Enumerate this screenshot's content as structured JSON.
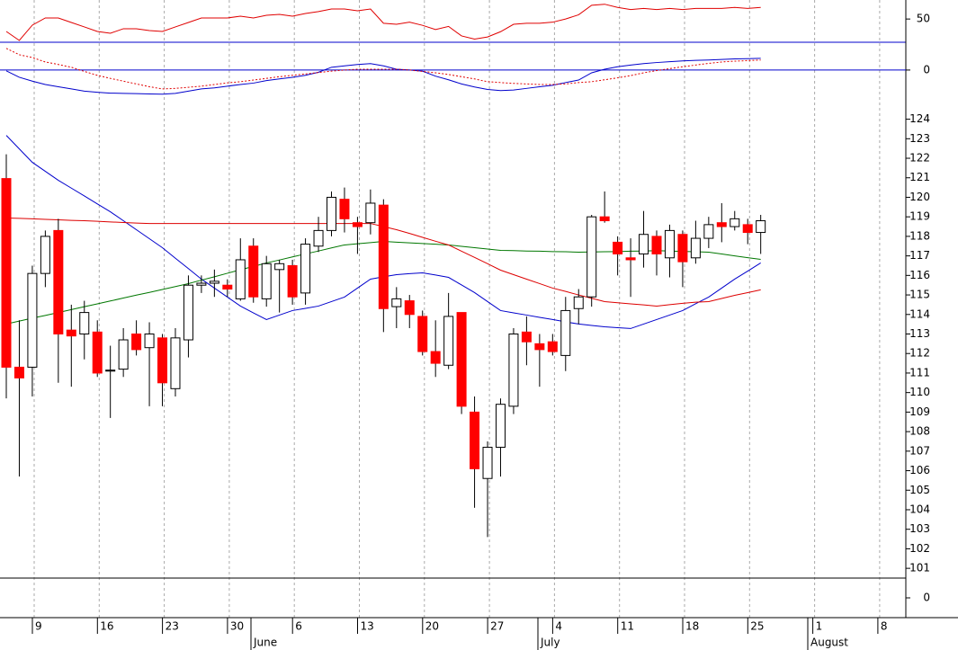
{
  "chart_data": [
    {
      "type": "line",
      "ylim": [
        28,
        68
      ],
      "yticks": [
        50
      ],
      "series": [
        {
          "color": "#e00000",
          "values": [
            38.2,
            29.7,
            44.2,
            51,
            51,
            46.7,
            42.5,
            38.2,
            36.5,
            40.8,
            40.8,
            39.1,
            38.2,
            42.5,
            46.7,
            51,
            51,
            51,
            52.7,
            51,
            53.5,
            54.4,
            52.7,
            55.2,
            57,
            59.5,
            59.5,
            57.8,
            59.5,
            46,
            45,
            47,
            44,
            40,
            43,
            34,
            31,
            33,
            38,
            45,
            46,
            46,
            47,
            50,
            54,
            63,
            64,
            61,
            59,
            60,
            59,
            60,
            59,
            60,
            60,
            60,
            61,
            60,
            61
          ]
        }
      ]
    },
    {
      "type": "line",
      "ylim": [
        -1.2,
        1.0
      ],
      "yticks": [
        0
      ],
      "grid": true,
      "series": [
        {
          "color": "#0000cc",
          "values": [
            -0.03,
            -0.26,
            -0.4,
            -0.52,
            -0.6,
            -0.68,
            -0.76,
            -0.8,
            -0.83,
            -0.84,
            -0.85,
            -0.86,
            -0.87,
            -0.84,
            -0.76,
            -0.68,
            -0.64,
            -0.58,
            -0.52,
            -0.47,
            -0.38,
            -0.32,
            -0.26,
            -0.19,
            -0.08,
            0.1,
            0.15,
            0.2,
            0.23,
            0.15,
            0.03,
            0,
            -0.04,
            -0.22,
            -0.35,
            -0.5,
            -0.61,
            -0.7,
            -0.74,
            -0.72,
            -0.66,
            -0.6,
            -0.55,
            -0.45,
            -0.36,
            -0.1,
            0.03,
            0.12,
            0.18,
            0.23,
            0.27,
            0.3,
            0.33,
            0.35,
            0.36,
            0.38,
            0.4,
            0.41,
            0.42
          ]
        },
        {
          "color": "#e00000",
          "dashed": true,
          "values": [
            0.78,
            0.55,
            0.45,
            0.29,
            0.2,
            0.1,
            -0.05,
            -0.19,
            -0.3,
            -0.4,
            -0.5,
            -0.6,
            -0.68,
            -0.66,
            -0.62,
            -0.58,
            -0.52,
            -0.46,
            -0.42,
            -0.36,
            -0.3,
            -0.24,
            -0.19,
            -0.14,
            -0.09,
            -0.04,
            0,
            0.03,
            0.03,
            0.03,
            0.03,
            0,
            -0.05,
            -0.1,
            -0.16,
            -0.24,
            -0.32,
            -0.42,
            -0.45,
            -0.48,
            -0.5,
            -0.52,
            -0.52,
            -0.5,
            -0.45,
            -0.42,
            -0.35,
            -0.28,
            -0.2,
            -0.1,
            -0.02,
            0.05,
            0.12,
            0.18,
            0.24,
            0.29,
            0.32,
            0.34,
            0.36
          ]
        }
      ]
    },
    {
      "type": "candlestick",
      "ylim": [
        100.5,
        125.5
      ],
      "yticks": [
        101,
        102,
        103,
        104,
        105,
        106,
        107,
        108,
        109,
        110,
        111,
        112,
        113,
        114,
        115,
        116,
        117,
        118,
        119,
        120,
        121,
        122,
        123,
        124
      ],
      "up_color": "#ffffff",
      "down_color": "#ff0000",
      "open": [
        120.96,
        111.3,
        111.3,
        116.1,
        118.3,
        113.2,
        113.0,
        113.1,
        111.1,
        111.2,
        113.0,
        112.3,
        112.8,
        110.2,
        112.7,
        115.5,
        115.6,
        115.5,
        114.8,
        117.5,
        114.8,
        116.3,
        116.5,
        115.1,
        117.5,
        118.3,
        119.9,
        118.7,
        118.7,
        119.6,
        114.4,
        114.7,
        113.9,
        112.1,
        111.4,
        114.1,
        109.0,
        105.6,
        107.2,
        109.3,
        113.1,
        112.5,
        112.6,
        111.9,
        114.3,
        114.9,
        119.0,
        117.7,
        116.9,
        117.1,
        118.0,
        116.9,
        118.1,
        116.9,
        117.9,
        118.7,
        118.5,
        118.6,
        118.2
      ],
      "high": [
        122.2,
        113.7,
        116.5,
        118.3,
        118.9,
        114.5,
        114.7,
        113.7,
        112.4,
        113.3,
        113.7,
        113.6,
        113.0,
        113.3,
        116.0,
        116.0,
        116.3,
        115.8,
        117.9,
        117.9,
        117.0,
        116.8,
        116.8,
        117.9,
        119.0,
        120.3,
        120.5,
        119.0,
        120.4,
        119.9,
        115.4,
        115.0,
        114.2,
        113.7,
        115.1,
        114.1,
        109.8,
        107.5,
        109.7,
        113.3,
        113.9,
        113.0,
        113.0,
        114.9,
        115.3,
        119.1,
        120.3,
        118.0,
        117.9,
        119.3,
        118.3,
        118.6,
        118.3,
        118.8,
        119.0,
        119.7,
        119.3,
        118.9,
        119.1
      ],
      "low": [
        109.7,
        105.7,
        109.8,
        115.4,
        110.5,
        110.3,
        111.7,
        110.8,
        108.7,
        110.8,
        111.9,
        109.3,
        109.3,
        109.8,
        111.8,
        115.1,
        114.9,
        114.9,
        114.7,
        114.6,
        114.4,
        114.1,
        114.5,
        114.5,
        117.2,
        118.0,
        118.2,
        117.1,
        118.1,
        113.1,
        113.3,
        113.3,
        111.9,
        110.8,
        111.2,
        108.9,
        104.1,
        102.6,
        105.7,
        108.9,
        111.4,
        110.3,
        111.9,
        111.1,
        113.5,
        114.4,
        118.7,
        116.0,
        114.9,
        116.4,
        116.0,
        115.9,
        115.4,
        116.6,
        117.4,
        117.7,
        118.3,
        117.6,
        117.1
      ],
      "close": [
        111.3,
        110.75,
        116.1,
        118.0,
        113.0,
        112.9,
        114.1,
        111.0,
        111.15,
        112.7,
        112.2,
        113.0,
        110.5,
        112.8,
        115.5,
        115.6,
        115.7,
        115.3,
        116.8,
        114.9,
        116.6,
        116.6,
        114.9,
        117.6,
        118.3,
        120.0,
        118.9,
        118.5,
        119.7,
        114.3,
        114.8,
        114.0,
        112.1,
        111.5,
        113.9,
        109.3,
        106.1,
        107.2,
        109.4,
        113.0,
        112.6,
        112.2,
        112.1,
        114.2,
        114.9,
        119.0,
        118.8,
        117.1,
        116.8,
        118.1,
        117.1,
        118.3,
        116.7,
        117.9,
        118.6,
        118.5,
        118.9,
        118.2,
        118.8
      ],
      "series": [
        {
          "color": "#0000cc",
          "values": [
            123.17,
            122.48,
            121.79,
            121.33,
            120.87,
            120.47,
            120.07,
            119.66,
            119.26,
            118.8,
            118.34,
            117.88,
            117.42,
            116.88,
            116.35,
            115.81,
            115.35,
            114.89,
            114.43,
            114.08,
            113.74,
            113.97,
            114.2,
            114.31,
            114.43,
            114.66,
            114.89,
            115.35,
            115.81,
            115.93,
            116.04,
            116.09,
            116.13,
            116.02,
            115.9,
            115.51,
            115.12,
            114.66,
            114.2,
            114.08,
            113.97,
            113.85,
            113.74,
            113.62,
            113.51,
            113.44,
            113.37,
            113.32,
            113.28,
            113.51,
            113.74,
            113.97,
            114.2,
            114.55,
            114.89,
            115.35,
            115.81,
            116.22,
            116.64
          ]
        },
        {
          "color": "#007700",
          "values": [
            113.51,
            113.66,
            113.81,
            113.95,
            114.1,
            114.25,
            114.4,
            114.54,
            114.69,
            114.84,
            114.99,
            115.13,
            115.28,
            115.43,
            115.58,
            115.76,
            115.93,
            116.11,
            116.29,
            116.46,
            116.64,
            116.79,
            116.95,
            117.1,
            117.25,
            117.41,
            117.56,
            117.62,
            117.68,
            117.74,
            117.7,
            117.67,
            117.63,
            117.6,
            117.56,
            117.49,
            117.42,
            117.35,
            117.28,
            117.27,
            117.25,
            117.24,
            117.22,
            117.21,
            117.19,
            117.2,
            117.21,
            117.22,
            117.24,
            117.25,
            117.27,
            117.25,
            117.23,
            117.21,
            117.19,
            117.1,
            117.0,
            116.91,
            116.82
          ]
        },
        {
          "color": "#dd0000",
          "values": [
            118.94,
            118.92,
            118.9,
            118.87,
            118.85,
            118.82,
            118.8,
            118.77,
            118.74,
            118.71,
            118.68,
            118.66,
            118.66,
            118.66,
            118.66,
            118.66,
            118.66,
            118.66,
            118.66,
            118.66,
            118.66,
            118.66,
            118.66,
            118.66,
            118.66,
            118.66,
            118.66,
            118.66,
            118.66,
            118.5,
            118.34,
            118.15,
            117.95,
            117.75,
            117.56,
            117.24,
            116.92,
            116.6,
            116.27,
            116.04,
            115.81,
            115.58,
            115.35,
            115.18,
            115.0,
            114.83,
            114.66,
            114.6,
            114.54,
            114.49,
            114.43,
            114.5,
            114.57,
            114.63,
            114.66,
            114.82,
            114.98,
            115.12,
            115.26
          ]
        }
      ]
    },
    {
      "type": "volume",
      "ylim": [
        -1,
        1
      ],
      "yticks": [
        0
      ]
    }
  ],
  "x_axis": {
    "days": [
      "9",
      "16",
      "23",
      "30",
      "6",
      "13",
      "20",
      "27",
      "4",
      "11",
      "18",
      "25",
      "1",
      "8"
    ],
    "months": [
      "June",
      "July",
      "August"
    ]
  }
}
